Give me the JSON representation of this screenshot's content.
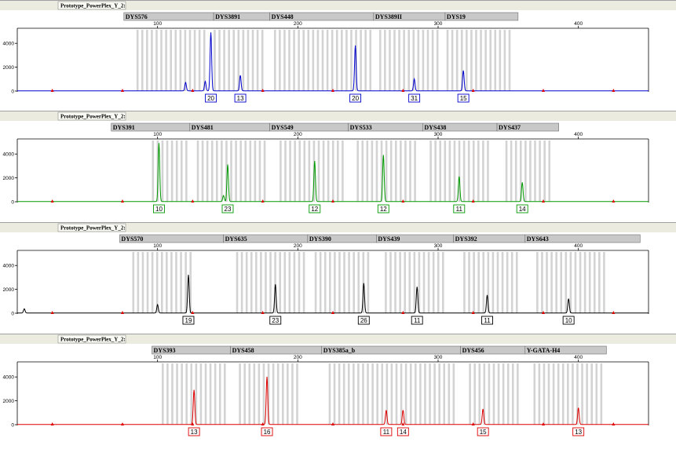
{
  "chart_data": [
    {
      "type": "line",
      "panel_tab": "Prototype_PowerPlex_Y_2:",
      "color": "#0000cc",
      "xlim": [
        0,
        450
      ],
      "xticks": [
        100,
        200,
        300,
        400
      ],
      "ylim": [
        0,
        5000
      ],
      "yticks": [
        0,
        2000,
        4000
      ],
      "markers": [
        {
          "name": "DYS576",
          "start": 76,
          "end": 140
        },
        {
          "name": "DYS3891",
          "start": 140,
          "end": 180
        },
        {
          "name": "DYS448",
          "start": 180,
          "end": 254
        },
        {
          "name": "DYS389II",
          "start": 254,
          "end": 305
        },
        {
          "name": "DYS19",
          "start": 305,
          "end": 357
        }
      ],
      "peaks": [
        {
          "x": 120,
          "y": 700
        },
        {
          "x": 134,
          "y": 800
        },
        {
          "x": 138,
          "y": 4900,
          "allele": "20"
        },
        {
          "x": 159,
          "y": 1300,
          "allele": "13"
        },
        {
          "x": 241,
          "y": 3800,
          "allele": "20"
        },
        {
          "x": 283,
          "y": 1000,
          "allele": "31"
        },
        {
          "x": 318,
          "y": 1700,
          "allele": "15"
        }
      ],
      "bin_ranges": [
        [
          85,
          136
        ],
        [
          140,
          175
        ],
        [
          183,
          252
        ],
        [
          258,
          302
        ],
        [
          306,
          351
        ]
      ]
    },
    {
      "type": "line",
      "panel_tab": "Prototype_PowerPlex_Y_2:",
      "color": "#009900",
      "xlim": [
        0,
        450
      ],
      "xticks": [
        100,
        200,
        300,
        400
      ],
      "ylim": [
        0,
        5000
      ],
      "yticks": [
        0,
        2000,
        4000
      ],
      "markers": [
        {
          "name": "DYS391",
          "start": 67,
          "end": 123
        },
        {
          "name": "DYS481",
          "start": 123,
          "end": 180
        },
        {
          "name": "DYS549",
          "start": 180,
          "end": 236
        },
        {
          "name": "DYS533",
          "start": 236,
          "end": 289
        },
        {
          "name": "DYS438",
          "start": 289,
          "end": 342
        },
        {
          "name": "DYS437",
          "start": 342,
          "end": 386
        }
      ],
      "peaks": [
        {
          "x": 101,
          "y": 4900,
          "allele": "10"
        },
        {
          "x": 147,
          "y": 500
        },
        {
          "x": 150,
          "y": 3100,
          "allele": "23"
        },
        {
          "x": 212,
          "y": 3400,
          "allele": "12"
        },
        {
          "x": 261,
          "y": 3900,
          "allele": "12"
        },
        {
          "x": 315,
          "y": 2100,
          "allele": "11"
        },
        {
          "x": 360,
          "y": 1600,
          "allele": "14"
        }
      ],
      "bin_ranges": [
        [
          96,
          120
        ],
        [
          128,
          177
        ],
        [
          187,
          232
        ],
        [
          242,
          286
        ],
        [
          294,
          338
        ],
        [
          348,
          380
        ]
      ]
    },
    {
      "type": "line",
      "panel_tab": "Prototype_PowerPlex_Y_2:",
      "color": "#000000",
      "xlim": [
        0,
        450
      ],
      "xticks": [
        100,
        200,
        300,
        400
      ],
      "ylim": [
        0,
        5000
      ],
      "yticks": [
        0,
        2000,
        4000
      ],
      "markers": [
        {
          "name": "DYS570",
          "start": 73,
          "end": 147
        },
        {
          "name": "DYS635",
          "start": 147,
          "end": 207
        },
        {
          "name": "DYS390",
          "start": 207,
          "end": 256
        },
        {
          "name": "DYS439",
          "start": 256,
          "end": 311
        },
        {
          "name": "DYS392",
          "start": 311,
          "end": 362
        },
        {
          "name": "DYS643",
          "start": 362,
          "end": 444
        }
      ],
      "peaks": [
        {
          "x": 5,
          "y": 350
        },
        {
          "x": 100,
          "y": 700
        },
        {
          "x": 122,
          "y": 3200,
          "allele": "19"
        },
        {
          "x": 184,
          "y": 2400,
          "allele": "23"
        },
        {
          "x": 247,
          "y": 2500,
          "allele": "26"
        },
        {
          "x": 285,
          "y": 2200,
          "allele": "11"
        },
        {
          "x": 335,
          "y": 1500,
          "allele": "11"
        },
        {
          "x": 393,
          "y": 1200,
          "allele": "10"
        }
      ],
      "bin_ranges": [
        [
          82,
          126
        ],
        [
          156,
          204
        ],
        [
          212,
          252
        ],
        [
          262,
          306
        ],
        [
          318,
          358
        ],
        [
          370,
          418
        ]
      ]
    },
    {
      "type": "line",
      "panel_tab": "Prototype_PowerPlex_Y_2:",
      "color": "#dd0000",
      "xlim": [
        0,
        450
      ],
      "xticks": [
        100,
        200,
        300,
        400
      ],
      "ylim": [
        0,
        5000
      ],
      "yticks": [
        0,
        2000,
        4000
      ],
      "markers": [
        {
          "name": "DYS393",
          "start": 96,
          "end": 152
        },
        {
          "name": "DYS458",
          "start": 152,
          "end": 217
        },
        {
          "name": "DYS385a_b",
          "start": 217,
          "end": 316
        },
        {
          "name": "DYS456",
          "start": 316,
          "end": 362
        },
        {
          "name": "Y-GATA-H4",
          "start": 362,
          "end": 420
        }
      ],
      "peaks": [
        {
          "x": 126,
          "y": 2900,
          "allele": "13"
        },
        {
          "x": 178,
          "y": 4000,
          "allele": "16"
        },
        {
          "x": 263,
          "y": 1200,
          "allele": "11"
        },
        {
          "x": 275,
          "y": 1200,
          "allele": "14"
        },
        {
          "x": 332,
          "y": 1300,
          "allele": "15"
        },
        {
          "x": 400,
          "y": 1400,
          "allele": "13"
        }
      ],
      "bin_ranges": [
        [
          103,
          148
        ],
        [
          158,
          200
        ],
        [
          222,
          312
        ],
        [
          322,
          358
        ],
        [
          368,
          418
        ]
      ]
    }
  ]
}
